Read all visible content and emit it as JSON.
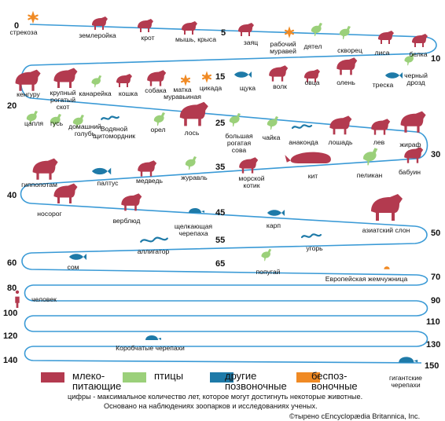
{
  "colors": {
    "mammals": "#b33a4f",
    "birds": "#9bd07a",
    "other_vertebrates": "#1e7aa8",
    "invertebrates": "#f08a24",
    "track": "#3a9ad6"
  },
  "scale_numbers": [
    "0",
    "5",
    "10",
    "15",
    "20",
    "25",
    "30",
    "35",
    "40",
    "45",
    "50",
    "55",
    "60",
    "65",
    "70",
    "80",
    "90",
    "100",
    "110",
    "120",
    "130",
    "140",
    "150"
  ],
  "animals": [
    {
      "label": "стрекоза",
      "group": "invertebrates",
      "icon": "dragonfly-icon"
    },
    {
      "label": "землеройка",
      "group": "mammals",
      "icon": "shrew-icon"
    },
    {
      "label": "крот",
      "group": "mammals",
      "icon": "mole-icon"
    },
    {
      "label": "мышь, крыса",
      "group": "mammals",
      "icon": "mouse-icon"
    },
    {
      "label": "заяц",
      "group": "mammals",
      "icon": "hare-icon"
    },
    {
      "label": "рабочий\nмуравей",
      "group": "invertebrates",
      "icon": "ant-icon"
    },
    {
      "label": "дятел",
      "group": "birds",
      "icon": "woodpecker-icon"
    },
    {
      "label": "скворец",
      "group": "birds",
      "icon": "starling-icon"
    },
    {
      "label": "лиса",
      "group": "mammals",
      "icon": "fox-icon"
    },
    {
      "label": "белка",
      "group": "mammals",
      "icon": "squirrel-icon"
    },
    {
      "label": "черный\nдрозд",
      "group": "birds",
      "icon": "blackbird-icon"
    },
    {
      "label": "треска",
      "group": "other_vertebrates",
      "icon": "cod-icon"
    },
    {
      "label": "олень",
      "group": "mammals",
      "icon": "deer-icon"
    },
    {
      "label": "овца",
      "group": "mammals",
      "icon": "sheep-icon"
    },
    {
      "label": "волк",
      "group": "mammals",
      "icon": "wolf-icon"
    },
    {
      "label": "щука",
      "group": "other_vertebrates",
      "icon": "pike-icon"
    },
    {
      "label": "цикада",
      "group": "invertebrates",
      "icon": "cicada-icon"
    },
    {
      "label": "матка\nмуравьиная",
      "group": "invertebrates",
      "icon": "queen-ant-icon"
    },
    {
      "label": "собака",
      "group": "mammals",
      "icon": "dog-icon"
    },
    {
      "label": "кошка",
      "group": "mammals",
      "icon": "cat-icon"
    },
    {
      "label": "канарейка",
      "group": "birds",
      "icon": "canary-icon"
    },
    {
      "label": "крупный\nрогатый\nскот",
      "group": "mammals",
      "icon": "cattle-icon"
    },
    {
      "label": "кенгуру",
      "group": "mammals",
      "icon": "kangaroo-icon"
    },
    {
      "label": "цапля",
      "group": "birds",
      "icon": "heron-icon"
    },
    {
      "label": "гусь",
      "group": "birds",
      "icon": "goose-icon"
    },
    {
      "label": "домашний\nголубь",
      "group": "birds",
      "icon": "pigeon-icon"
    },
    {
      "label": "Водяной\nщитомордник",
      "group": "other_vertebrates",
      "icon": "snake-icon"
    },
    {
      "label": "орел",
      "group": "birds",
      "icon": "eagle-icon"
    },
    {
      "label": "лось",
      "group": "mammals",
      "icon": "moose-icon"
    },
    {
      "label": "большая\nрогатая\nсова",
      "group": "birds",
      "icon": "owl-icon"
    },
    {
      "label": "чайка",
      "group": "birds",
      "icon": "gull-icon"
    },
    {
      "label": "анаконда",
      "group": "other_vertebrates",
      "icon": "anaconda-icon"
    },
    {
      "label": "лошадь",
      "group": "mammals",
      "icon": "horse-icon"
    },
    {
      "label": "лев",
      "group": "mammals",
      "icon": "lion-icon"
    },
    {
      "label": "жираф",
      "group": "mammals",
      "icon": "giraffe-icon"
    },
    {
      "label": "бабуин",
      "group": "mammals",
      "icon": "baboon-icon"
    },
    {
      "label": "пеликан",
      "group": "birds",
      "icon": "pelican-icon"
    },
    {
      "label": "кит",
      "group": "mammals",
      "icon": "whale-icon"
    },
    {
      "label": "морской\nкотик",
      "group": "mammals",
      "icon": "seal-icon"
    },
    {
      "label": "журавль",
      "group": "birds",
      "icon": "crane-icon"
    },
    {
      "label": "медведь",
      "group": "mammals",
      "icon": "bear-icon"
    },
    {
      "label": "палтус",
      "group": "other_vertebrates",
      "icon": "halibut-icon"
    },
    {
      "label": "гиппопотам",
      "group": "mammals",
      "icon": "hippo-icon"
    },
    {
      "label": "носорог",
      "group": "mammals",
      "icon": "rhino-icon"
    },
    {
      "label": "верблюд",
      "group": "mammals",
      "icon": "camel-icon"
    },
    {
      "label": "щелкающая\nчерепаха",
      "group": "other_vertebrates",
      "icon": "snapping-turtle-icon"
    },
    {
      "label": "карп",
      "group": "other_vertebrates",
      "icon": "carp-icon"
    },
    {
      "label": "азиатский слон",
      "group": "mammals",
      "icon": "elephant-icon"
    },
    {
      "label": "угорь",
      "group": "other_vertebrates",
      "icon": "eel-icon"
    },
    {
      "label": "аллигатор",
      "group": "other_vertebrates",
      "icon": "alligator-icon"
    },
    {
      "label": "сом",
      "group": "other_vertebrates",
      "icon": "catfish-icon"
    },
    {
      "label": "попугай",
      "group": "birds",
      "icon": "parrot-icon"
    },
    {
      "label": "Европейская жемчужница",
      "group": "invertebrates",
      "icon": "pearl-mussel-icon"
    },
    {
      "label": "человек",
      "group": "mammals",
      "icon": "human-icon"
    },
    {
      "label": "Коробчатые черепахи",
      "group": "other_vertebrates",
      "icon": "box-turtle-icon"
    },
    {
      "label": "гигантские\nчерепахи",
      "group": "other_vertebrates",
      "icon": "giant-tortoise-icon"
    }
  ],
  "legend": [
    {
      "key": "mammals",
      "label": "млеко-\nпитающие"
    },
    {
      "key": "birds",
      "label": "птицы"
    },
    {
      "key": "other_vertebrates",
      "label": "другие\nпозвоночные"
    },
    {
      "key": "invertebrates",
      "label": "беспоз-\nвоночные"
    }
  ],
  "footnote": {
    "line1": "цифры - максимальное количество лет, которое могут достигнуть некоторые животные.",
    "line2": "Основано на наблюдениях зоопарков и исследованиях ученых.",
    "copyright": "©тырено сEncyclopædia Britannica, Inc."
  }
}
